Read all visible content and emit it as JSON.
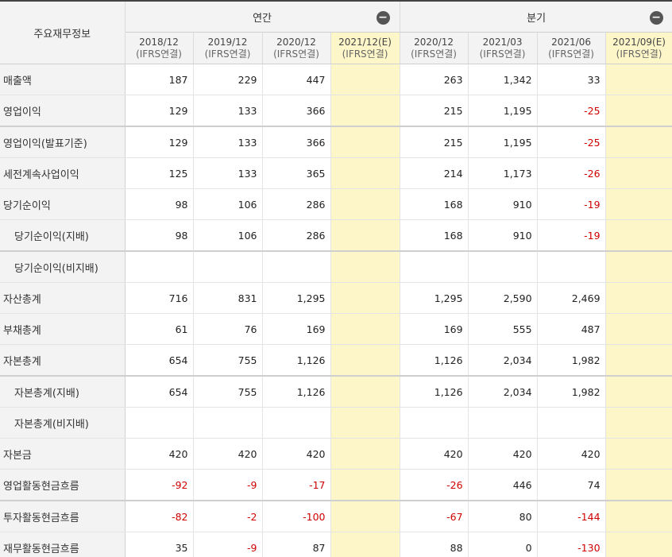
{
  "header": {
    "label_col": "주요재무정보",
    "annual_label": "연간",
    "quarter_label": "분기",
    "collapse_icon": "minus-circle-icon",
    "annual_periods": [
      {
        "period": "2018/12",
        "basis": "(IFRS연결)"
      },
      {
        "period": "2019/12",
        "basis": "(IFRS연결)"
      },
      {
        "period": "2020/12",
        "basis": "(IFRS연결)"
      },
      {
        "period": "2021/12(E)",
        "basis": "(IFRS연결)"
      }
    ],
    "quarter_periods": [
      {
        "period": "2020/12",
        "basis": "(IFRS연결)"
      },
      {
        "period": "2021/03",
        "basis": "(IFRS연결)"
      },
      {
        "period": "2021/06",
        "basis": "(IFRS연결)"
      },
      {
        "period": "2021/09(E)",
        "basis": "(IFRS연결)"
      }
    ]
  },
  "colors": {
    "negative": "#d00000",
    "estimate_bg": "#fdf6c8",
    "header_bg": "#f3f3f3"
  },
  "rows": [
    {
      "name": "매출액",
      "indent": false,
      "sep": false,
      "values": [
        "187",
        "229",
        "447",
        "",
        "263",
        "1,342",
        "33",
        ""
      ]
    },
    {
      "name": "영업이익",
      "indent": false,
      "sep": false,
      "values": [
        "129",
        "133",
        "366",
        "",
        "215",
        "1,195",
        "-25",
        ""
      ]
    },
    {
      "name": "영업이익(발표기준)",
      "indent": false,
      "sep": true,
      "values": [
        "129",
        "133",
        "366",
        "",
        "215",
        "1,195",
        "-25",
        ""
      ]
    },
    {
      "name": "세전계속사업이익",
      "indent": false,
      "sep": false,
      "values": [
        "125",
        "133",
        "365",
        "",
        "214",
        "1,173",
        "-26",
        ""
      ]
    },
    {
      "name": "당기순이익",
      "indent": false,
      "sep": false,
      "values": [
        "98",
        "106",
        "286",
        "",
        "168",
        "910",
        "-19",
        ""
      ]
    },
    {
      "name": "당기순이익(지배)",
      "indent": true,
      "sep": false,
      "values": [
        "98",
        "106",
        "286",
        "",
        "168",
        "910",
        "-19",
        ""
      ]
    },
    {
      "name": "당기순이익(비지배)",
      "indent": true,
      "sep": true,
      "values": [
        "",
        "",
        "",
        "",
        "",
        "",
        "",
        ""
      ]
    },
    {
      "name": "자산총계",
      "indent": false,
      "sep": false,
      "values": [
        "716",
        "831",
        "1,295",
        "",
        "1,295",
        "2,590",
        "2,469",
        ""
      ]
    },
    {
      "name": "부채총계",
      "indent": false,
      "sep": false,
      "values": [
        "61",
        "76",
        "169",
        "",
        "169",
        "555",
        "487",
        ""
      ]
    },
    {
      "name": "자본총계",
      "indent": false,
      "sep": false,
      "values": [
        "654",
        "755",
        "1,126",
        "",
        "1,126",
        "2,034",
        "1,982",
        ""
      ]
    },
    {
      "name": "자본총계(지배)",
      "indent": true,
      "sep": true,
      "values": [
        "654",
        "755",
        "1,126",
        "",
        "1,126",
        "2,034",
        "1,982",
        ""
      ]
    },
    {
      "name": "자본총계(비지배)",
      "indent": true,
      "sep": false,
      "values": [
        "",
        "",
        "",
        "",
        "",
        "",
        "",
        ""
      ]
    },
    {
      "name": "자본금",
      "indent": false,
      "sep": false,
      "values": [
        "420",
        "420",
        "420",
        "",
        "420",
        "420",
        "420",
        ""
      ]
    },
    {
      "name": "영업활동현금흐름",
      "indent": false,
      "sep": false,
      "values": [
        "-92",
        "-9",
        "-17",
        "",
        "-26",
        "446",
        "74",
        ""
      ]
    },
    {
      "name": "투자활동현금흐름",
      "indent": false,
      "sep": true,
      "values": [
        "-82",
        "-2",
        "-100",
        "",
        "-67",
        "80",
        "-144",
        ""
      ]
    },
    {
      "name": "재무활동현금흐름",
      "indent": false,
      "sep": false,
      "values": [
        "35",
        "-9",
        "87",
        "",
        "88",
        "0",
        "-130",
        ""
      ]
    }
  ]
}
